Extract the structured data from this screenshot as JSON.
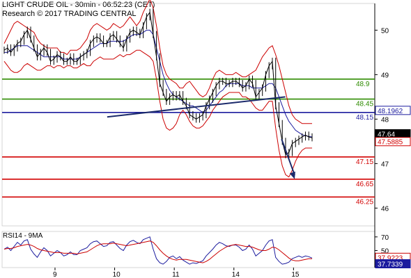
{
  "header": {
    "line1": "LIGHT CRUDE OIL - 30min - 06:52:23 (CET)",
    "line2": "Research © 2017 TRADING CENTRAL"
  },
  "chart_data": [
    {
      "type": "line",
      "panel": "price",
      "title": "LIGHT CRUDE OIL - 30min - 06:52:23 (CET)",
      "ylim": [
        45.6,
        50.6
      ],
      "y_ticks": [
        50,
        49,
        48,
        47,
        46
      ],
      "x_ticks": [
        "9",
        "10",
        "11",
        "14",
        "15"
      ],
      "last_price": 47.64,
      "levels": [
        {
          "value": 48.9,
          "label": "48.9",
          "color": "#2e8b00"
        },
        {
          "value": 48.45,
          "label": "48.45",
          "color": "#2e8b00"
        },
        {
          "value": 48.15,
          "label": "48.15",
          "color": "#1b1b9e"
        },
        {
          "value": 47.15,
          "label": "47.15",
          "color": "#d20000"
        },
        {
          "value": 46.65,
          "label": "46.65",
          "color": "#d20000"
        },
        {
          "value": 46.25,
          "label": "46.25",
          "color": "#d20000"
        }
      ],
      "badges": [
        {
          "value": 48.1962,
          "label": "48.1962",
          "color": "#1b1b9e",
          "text_color": "#1b1b9e"
        },
        {
          "value": 47.64,
          "label": "47.64",
          "color": "#000000",
          "text_color": "#ffffff",
          "filled": true
        },
        {
          "value": 47.5885,
          "label": "47.5885",
          "color": "#d20000",
          "text_color": "#d20000"
        }
      ],
      "series": [
        {
          "name": "price",
          "color": "#000000",
          "values": [
            49.55,
            49.6,
            49.5,
            49.6,
            49.7,
            49.75,
            49.9,
            50.0,
            49.8,
            49.6,
            49.4,
            49.5,
            49.6,
            49.5,
            49.3,
            49.35,
            49.45,
            49.4,
            49.3,
            49.3,
            49.4,
            49.3,
            49.3,
            49.4,
            49.45,
            49.5,
            49.7,
            49.8,
            49.85,
            49.8,
            49.7,
            49.7,
            49.85,
            49.9,
            49.8,
            49.7,
            49.6,
            49.8,
            49.95,
            50.0,
            49.95,
            49.9,
            50.1,
            50.3,
            50.4,
            49.9,
            49.4,
            48.8,
            48.6,
            48.4,
            48.5,
            48.55,
            48.5,
            48.55,
            48.4,
            48.3,
            48.1,
            48.05,
            48.0,
            48.05,
            48.1,
            48.3,
            48.45,
            48.6,
            48.75,
            48.85,
            48.85,
            48.8,
            48.8,
            48.85,
            48.85,
            48.8,
            48.7,
            48.75,
            48.9,
            48.8,
            48.5,
            48.6,
            48.7,
            49.0,
            49.2,
            49.3,
            48.3,
            47.9,
            47.5,
            47.2,
            47.25,
            47.45,
            47.5,
            47.55,
            47.6,
            47.64,
            47.6,
            47.58
          ]
        },
        {
          "name": "upper band",
          "color": "#cc0000",
          "values": [
            49.7,
            49.85,
            50.0,
            50.15,
            50.2,
            50.15,
            50.1,
            50.05,
            50.0,
            49.95,
            49.8,
            49.7,
            49.65,
            49.6,
            49.6,
            49.6,
            49.6,
            49.5,
            49.5,
            49.45,
            49.55,
            49.55,
            49.55,
            49.6,
            49.7,
            49.8,
            50.0,
            50.1,
            50.15,
            50.1,
            50.05,
            50.0,
            50.05,
            50.15,
            50.1,
            50.05,
            50.1,
            50.2,
            50.3,
            50.2,
            50.1,
            50.2,
            50.4,
            50.55,
            50.7,
            50.5,
            50.1,
            49.6,
            49.2,
            49.0,
            48.9,
            48.85,
            48.8,
            48.7,
            48.7,
            48.8,
            48.85,
            48.75,
            48.65,
            48.55,
            48.5,
            48.55,
            48.7,
            48.9,
            49.05,
            49.1,
            49.05,
            49.0,
            49.0,
            49.0,
            49.05,
            49.0,
            48.95,
            48.95,
            49.0,
            49.05,
            49.1,
            49.25,
            49.4,
            49.5,
            49.6,
            49.65,
            49.45,
            49.2,
            48.9,
            48.6,
            48.3,
            48.1,
            48.0,
            47.95,
            47.9,
            47.9,
            47.9,
            47.9
          ]
        },
        {
          "name": "lower band",
          "color": "#cc0000",
          "values": [
            49.3,
            49.2,
            49.1,
            49.05,
            49.05,
            49.1,
            49.2,
            49.25,
            49.2,
            49.15,
            49.1,
            49.1,
            49.15,
            49.2,
            49.2,
            49.15,
            49.2,
            49.2,
            49.15,
            49.2,
            49.2,
            49.15,
            49.15,
            49.2,
            49.25,
            49.2,
            49.2,
            49.3,
            49.35,
            49.4,
            49.35,
            49.35,
            49.35,
            49.35,
            49.4,
            49.45,
            49.4,
            49.45,
            49.45,
            49.5,
            49.55,
            49.55,
            49.5,
            49.45,
            49.4,
            49.3,
            48.9,
            48.4,
            48.0,
            47.8,
            47.75,
            47.8,
            47.9,
            48.1,
            48.2,
            48.1,
            47.95,
            47.85,
            47.8,
            47.8,
            47.85,
            47.95,
            48.05,
            48.2,
            48.3,
            48.4,
            48.5,
            48.55,
            48.6,
            48.6,
            48.6,
            48.6,
            48.5,
            48.5,
            48.45,
            48.35,
            48.25,
            48.2,
            48.2,
            48.3,
            48.4,
            48.4,
            47.8,
            47.3,
            46.95,
            46.75,
            46.7,
            46.85,
            47.05,
            47.2,
            47.3,
            47.35,
            47.35,
            47.35
          ]
        },
        {
          "name": "moving average",
          "color": "#1b1b9e",
          "values": [
            49.5,
            49.5,
            49.55,
            49.6,
            49.65,
            49.65,
            49.65,
            49.65,
            49.6,
            49.55,
            49.5,
            49.45,
            49.4,
            49.4,
            49.4,
            49.4,
            49.4,
            49.4,
            49.35,
            49.35,
            49.35,
            49.35,
            49.35,
            49.4,
            49.45,
            49.5,
            49.55,
            49.6,
            49.65,
            49.7,
            49.7,
            49.7,
            49.75,
            49.75,
            49.75,
            49.75,
            49.75,
            49.8,
            49.85,
            49.9,
            49.9,
            49.9,
            49.95,
            50.0,
            50.0,
            49.9,
            49.6,
            49.3,
            49.0,
            48.8,
            48.65,
            48.55,
            48.5,
            48.45,
            48.4,
            48.35,
            48.3,
            48.3,
            48.25,
            48.2,
            48.15,
            48.2,
            48.3,
            48.4,
            48.5,
            48.6,
            48.65,
            48.75,
            48.8,
            48.8,
            48.8,
            48.8,
            48.75,
            48.75,
            48.75,
            48.7,
            48.7,
            48.7,
            48.7,
            48.75,
            48.8,
            48.8,
            48.7,
            48.5,
            48.3,
            48.1,
            47.95,
            47.85,
            47.75,
            47.7,
            47.65,
            47.63,
            47.61,
            47.6
          ]
        }
      ],
      "trendline": {
        "from": [
          0.282,
          48.05
        ],
        "to": [
          0.76,
          48.5
        ],
        "color": "#1b2a6b"
      },
      "arrow": {
        "from": [
          0.75,
          47.55
        ],
        "to": [
          0.785,
          46.65
        ],
        "color": "#1b2a6b"
      }
    },
    {
      "type": "line",
      "panel": "RSI",
      "title": "RSI14 - 9MA",
      "ylim": [
        25,
        78
      ],
      "y_ticks": [
        70,
        50,
        30
      ],
      "badges": [
        {
          "value": 37.9223,
          "label": "37.9223",
          "color": "#cc0000",
          "text_color": "#cc0000"
        },
        {
          "value": 37.7339,
          "label": "37.7339",
          "color": "#1b1b9e",
          "text_color": "#ffffff",
          "filled": true
        }
      ],
      "series": [
        {
          "name": "RSI14",
          "color": "#1b1b9e",
          "values": [
            52,
            55,
            50,
            56,
            62,
            58,
            64,
            66,
            52,
            45,
            40,
            48,
            54,
            50,
            42,
            46,
            50,
            47,
            42,
            44,
            48,
            44,
            44,
            50,
            52,
            54,
            60,
            63,
            64,
            60,
            56,
            57,
            62,
            63,
            58,
            53,
            50,
            58,
            63,
            65,
            62,
            60,
            66,
            68,
            70,
            52,
            38,
            32,
            30,
            34,
            40,
            42,
            38,
            41,
            36,
            33,
            30,
            32,
            31,
            33,
            35,
            42,
            47,
            52,
            58,
            62,
            60,
            57,
            56,
            58,
            58,
            55,
            50,
            52,
            58,
            52,
            42,
            46,
            50,
            58,
            64,
            66,
            40,
            34,
            30,
            31,
            33,
            38,
            40,
            42,
            40,
            42,
            41,
            39
          ]
        },
        {
          "name": "9MA",
          "color": "#cc0000",
          "values": [
            52,
            53,
            53,
            54,
            56,
            57,
            58,
            59,
            58,
            56,
            53,
            51,
            50,
            49,
            48,
            47,
            47,
            47,
            46,
            46,
            46,
            46,
            45,
            46,
            47,
            48,
            51,
            54,
            57,
            59,
            60,
            60,
            60,
            61,
            60,
            59,
            58,
            57,
            58,
            59,
            60,
            61,
            62,
            63,
            64,
            62,
            57,
            51,
            46,
            42,
            39,
            37,
            36,
            37,
            37,
            37,
            36,
            35,
            34,
            33,
            32,
            34,
            37,
            41,
            45,
            49,
            52,
            55,
            57,
            58,
            59,
            58,
            57,
            56,
            56,
            55,
            53,
            51,
            50,
            50,
            52,
            55,
            54,
            51,
            47,
            43,
            39,
            36,
            35,
            35,
            36,
            37,
            38,
            38
          ]
        }
      ]
    }
  ]
}
